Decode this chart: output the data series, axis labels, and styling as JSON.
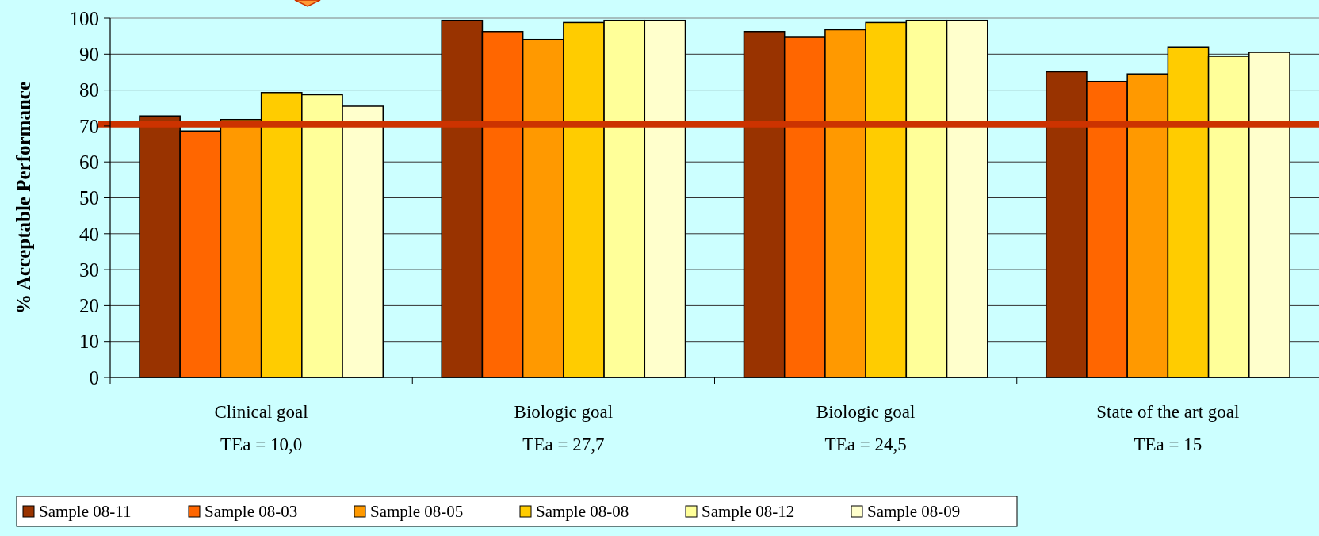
{
  "chart_data": {
    "type": "bar",
    "ylabel": "% Acceptable Performance",
    "categories": [
      "Clinical goal\nTEa = 10,0",
      "Biologic goal\nTEa = 27,7",
      "Biologic goal\nTEa = 24,5",
      "State of the art goal\nTEa = 15"
    ],
    "series": [
      {
        "name": "Sample 08-11",
        "color": "#993300",
        "values": [
          72.8,
          99.4,
          96.3,
          85.1
        ]
      },
      {
        "name": "Sample 08-03",
        "color": "#ff6600",
        "values": [
          68.6,
          96.3,
          94.7,
          82.4
        ]
      },
      {
        "name": "Sample 08-05",
        "color": "#ff9900",
        "values": [
          71.8,
          94.1,
          96.8,
          84.5
        ]
      },
      {
        "name": "Sample 08-08",
        "color": "#ffcc00",
        "values": [
          79.3,
          98.8,
          98.8,
          92.0
        ]
      },
      {
        "name": "Sample 08-12",
        "color": "#ffff99",
        "values": [
          78.7,
          99.4,
          99.4,
          89.4
        ]
      },
      {
        "name": "Sample 08-09",
        "color": "#ffffcc",
        "values": [
          75.5,
          99.4,
          99.4,
          90.5
        ]
      }
    ],
    "ylim": [
      0,
      100
    ],
    "yticks": [
      0,
      10,
      20,
      30,
      40,
      50,
      60,
      70,
      80,
      90,
      100
    ],
    "grid": "y",
    "legend": "bottom",
    "ref_lines": [
      {
        "axis": "y",
        "value": 70.5,
        "color": "#cc3300"
      }
    ]
  }
}
